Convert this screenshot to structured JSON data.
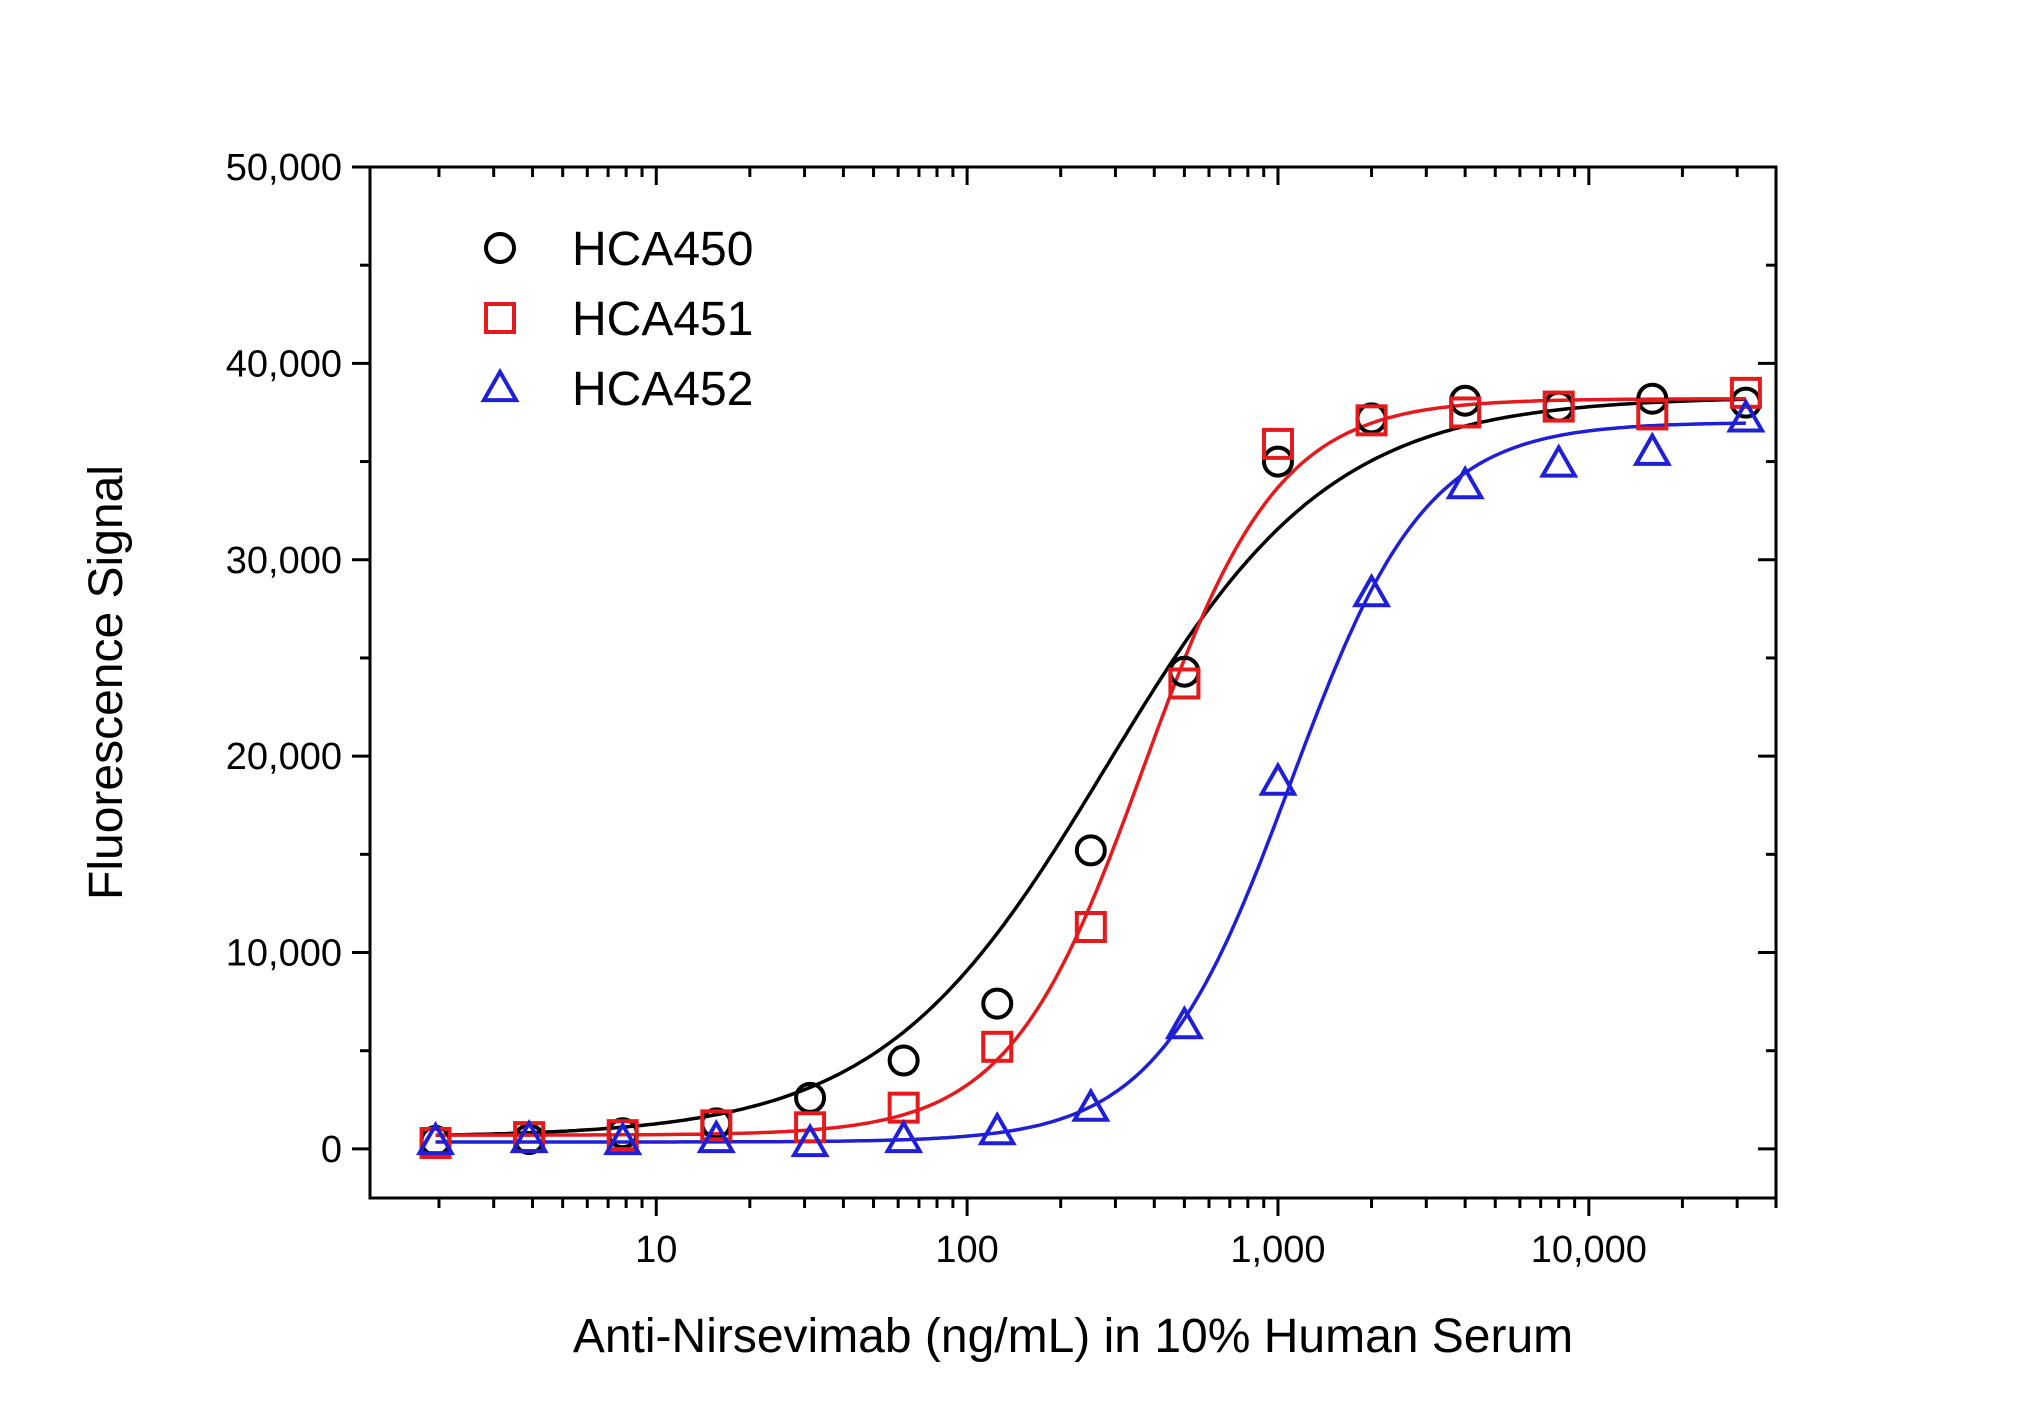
{
  "chart_data": {
    "type": "scatter",
    "xlabel": "Anti-Nirsevimab (ng/mL) in 10% Human Serum",
    "ylabel": "Fluorescence Signal",
    "xscale": "log",
    "xlim": [
      1.2,
      40000
    ],
    "ylim": [
      -2500,
      50000
    ],
    "x_ticks": [
      10,
      100,
      1000,
      10000
    ],
    "x_tick_labels": [
      "10",
      "100",
      "1,000",
      "10,000"
    ],
    "y_ticks": [
      0,
      10000,
      20000,
      30000,
      40000,
      50000
    ],
    "y_tick_labels": [
      "0",
      "10,000",
      "20,000",
      "30,000",
      "40,000",
      "50,000"
    ],
    "legend_position": "top-left",
    "x": [
      1.95,
      3.9,
      7.8,
      15.6,
      31.25,
      62.5,
      125,
      250,
      500,
      1000,
      2000,
      4000,
      8000,
      16000,
      32000
    ],
    "series": [
      {
        "name": "HCA450",
        "color": "#000000",
        "marker": "circle",
        "values": [
          400,
          500,
          800,
          1300,
          2600,
          4500,
          7400,
          15200,
          24300,
          35000,
          37200,
          38100,
          37800,
          38200,
          38000
        ],
        "fit": {
          "bottom": 600,
          "top": 38300,
          "ec50": 280,
          "hill": 1.2
        }
      },
      {
        "name": "HCA451",
        "color": "#e41a1c",
        "marker": "square",
        "values": [
          300,
          600,
          700,
          1200,
          1100,
          2100,
          5200,
          11300,
          23700,
          35900,
          37100,
          37500,
          37800,
          37400,
          38500
        ],
        "fit": {
          "bottom": 700,
          "top": 38200,
          "ec50": 370,
          "hill": 2.0
        }
      },
      {
        "name": "HCA452",
        "color": "#1f1fd6",
        "marker": "triangle",
        "values": [
          400,
          500,
          400,
          500,
          300,
          500,
          900,
          2100,
          6300,
          18700,
          28300,
          33800,
          34900,
          35500,
          37200
        ],
        "fit": {
          "bottom": 350,
          "top": 37000,
          "ec50": 1100,
          "hill": 2.0
        }
      }
    ]
  }
}
